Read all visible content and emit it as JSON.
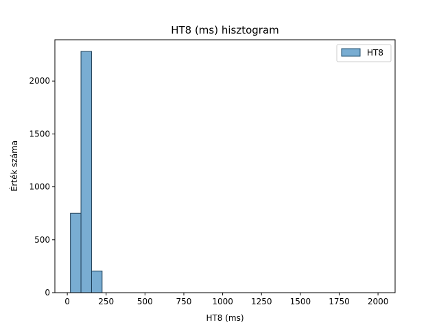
{
  "chart_data": {
    "type": "bar",
    "title": "HT8 (ms) hisztogram",
    "xlabel": "HT8 (ms)",
    "ylabel": "Érték száma",
    "xlim": [
      -80,
      2110
    ],
    "ylim": [
      0,
      2390
    ],
    "xticks": [
      0,
      250,
      500,
      750,
      1000,
      1250,
      1500,
      1750,
      2000
    ],
    "yticks": [
      0,
      500,
      1000,
      1500,
      2000
    ],
    "grid": false,
    "legend_position": "top-right",
    "series": [
      {
        "name": "HT8",
        "color": "#1f77b4",
        "bins": [
          {
            "x0": 20,
            "x1": 88,
            "count": 750
          },
          {
            "x0": 88,
            "x1": 156,
            "count": 2280
          },
          {
            "x0": 156,
            "x1": 224,
            "count": 205
          }
        ]
      }
    ]
  }
}
